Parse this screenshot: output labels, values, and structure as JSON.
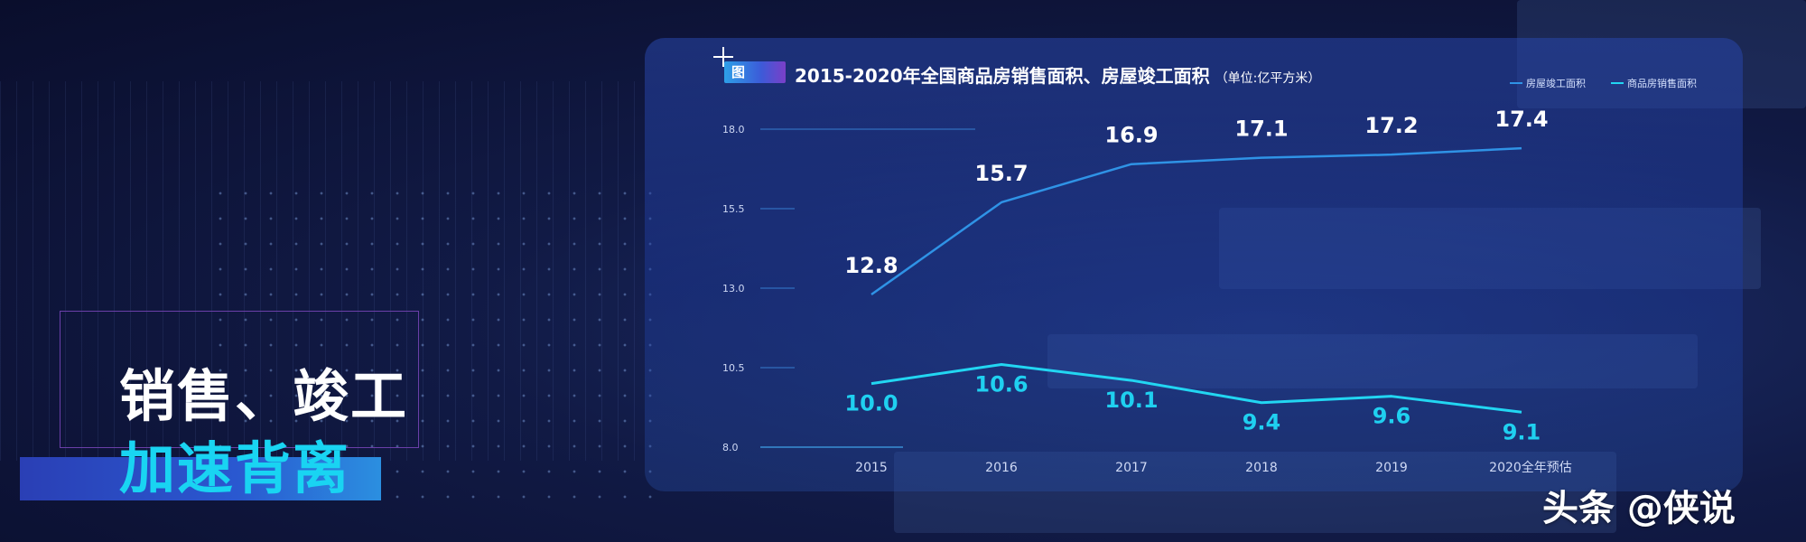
{
  "headline": {
    "line1": "销售、竣工",
    "line2": "加速背离"
  },
  "figure_tag": "图",
  "watermark": "头条 @侠说",
  "chart_data": {
    "type": "line",
    "title": "2015-2020年全国商品房销售面积、房屋竣工面积",
    "unit": "（单位:亿平方米）",
    "categories": [
      "2015",
      "2016",
      "2017",
      "2018",
      "2019",
      "2020全年预估"
    ],
    "y_ticks": [
      "8.0",
      "10.5",
      "13.0",
      "15.5",
      "18.0"
    ],
    "ylim": [
      8.0,
      18.0
    ],
    "legend_position": "top-right",
    "series": [
      {
        "name": "房屋竣工面积",
        "values": [
          12.8,
          15.7,
          16.9,
          17.1,
          17.2,
          17.4
        ],
        "labels": [
          "12.8",
          "15.7",
          "16.9",
          "17.1",
          "17.2",
          "17.4"
        ],
        "color": "#2f93e6",
        "label_color": "#ffffff"
      },
      {
        "name": "商品房销售面积",
        "values": [
          10.0,
          10.6,
          10.1,
          9.4,
          9.6,
          9.1
        ],
        "labels": [
          "10.0",
          "10.6",
          "10.1",
          "9.4",
          "9.6",
          "9.1"
        ],
        "color": "#22d6f2",
        "label_color": "#1fd0f0"
      }
    ]
  }
}
